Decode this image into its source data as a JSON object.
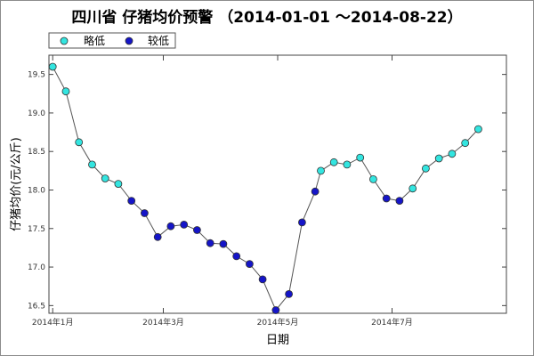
{
  "chart_data": {
    "type": "line",
    "title": "四川省 仔猪均价预警 （2014-01-01 ～2014-08-22）",
    "xlabel": "日期",
    "ylabel": "仔猪均价(元/公斤)",
    "ylim": [
      16.4,
      19.75
    ],
    "yticks": [
      "16.5",
      "17.0",
      "17.5",
      "18.0",
      "18.5",
      "19.0",
      "19.5"
    ],
    "xticks": [
      {
        "label": "2014年1月",
        "x": "2014-01-01"
      },
      {
        "label": "2014年3月",
        "x": "2014-03-01"
      },
      {
        "label": "2014年5月",
        "x": "2014-05-01"
      },
      {
        "label": "2014年7月",
        "x": "2014-07-01"
      }
    ],
    "xlim": [
      "2013-12-30",
      "2014-08-31"
    ],
    "grid": false,
    "legend": "top-left",
    "colors": {
      "line": "#555555",
      "slightly_low": "#33e5e0",
      "lower": "#1515c8",
      "marker_edge": "#333333"
    },
    "series": [
      {
        "name": "略低",
        "points": [
          {
            "x": "2014-01-01",
            "y": 19.6
          },
          {
            "x": "2014-01-08",
            "y": 19.28
          },
          {
            "x": "2014-01-15",
            "y": 18.62
          },
          {
            "x": "2014-01-22",
            "y": 18.33
          },
          {
            "x": "2014-01-29",
            "y": 18.15
          },
          {
            "x": "2014-02-05",
            "y": 18.08
          },
          {
            "x": "2014-05-24",
            "y": 18.25
          },
          {
            "x": "2014-05-31",
            "y": 18.36
          },
          {
            "x": "2014-06-07",
            "y": 18.33
          },
          {
            "x": "2014-06-14",
            "y": 18.42
          },
          {
            "x": "2014-06-21",
            "y": 18.14
          },
          {
            "x": "2014-07-12",
            "y": 18.02
          },
          {
            "x": "2014-07-19",
            "y": 18.28
          },
          {
            "x": "2014-07-26",
            "y": 18.41
          },
          {
            "x": "2014-08-02",
            "y": 18.47
          },
          {
            "x": "2014-08-09",
            "y": 18.61
          },
          {
            "x": "2014-08-16",
            "y": 18.79
          }
        ]
      },
      {
        "name": "较低",
        "points": [
          {
            "x": "2014-02-12",
            "y": 17.86
          },
          {
            "x": "2014-02-19",
            "y": 17.7
          },
          {
            "x": "2014-02-26",
            "y": 17.39
          },
          {
            "x": "2014-03-05",
            "y": 17.53
          },
          {
            "x": "2014-03-12",
            "y": 17.55
          },
          {
            "x": "2014-03-19",
            "y": 17.48
          },
          {
            "x": "2014-03-26",
            "y": 17.31
          },
          {
            "x": "2014-04-02",
            "y": 17.3
          },
          {
            "x": "2014-04-09",
            "y": 17.14
          },
          {
            "x": "2014-04-16",
            "y": 17.04
          },
          {
            "x": "2014-04-23",
            "y": 16.84
          },
          {
            "x": "2014-04-30",
            "y": 16.44
          },
          {
            "x": "2014-05-07",
            "y": 16.65
          },
          {
            "x": "2014-05-14",
            "y": 17.58
          },
          {
            "x": "2014-05-21",
            "y": 17.98
          },
          {
            "x": "2014-06-28",
            "y": 17.89
          },
          {
            "x": "2014-07-05",
            "y": 17.86
          }
        ]
      }
    ]
  }
}
